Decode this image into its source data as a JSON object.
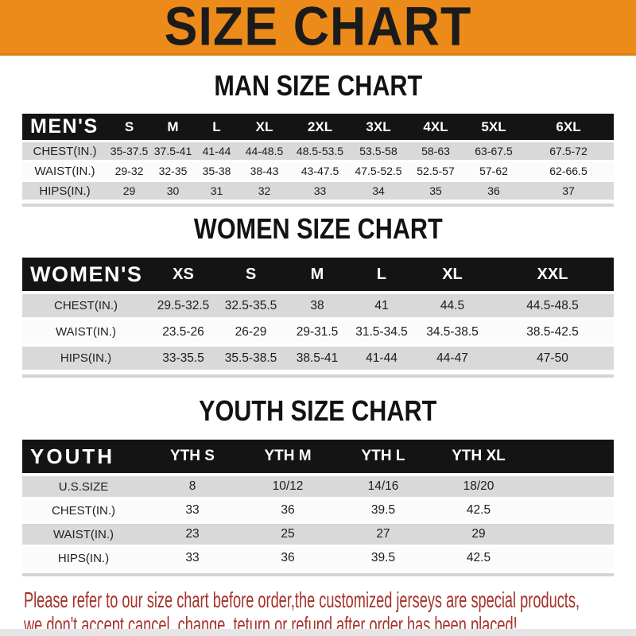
{
  "banner": {
    "title": "SIZE CHART"
  },
  "sections": [
    {
      "title": "MAN SIZE CHART",
      "group_label": "MEN'S",
      "columns": [
        "S",
        "M",
        "L",
        "XL",
        "2XL",
        "3XL",
        "4XL",
        "5XL",
        "6XL"
      ],
      "rows": [
        {
          "label": "CHEST(IN.)",
          "values": [
            "35-37.5",
            "37.5-41",
            "41-44",
            "44-48.5",
            "48.5-53.5",
            "53.5-58",
            "58-63",
            "63-67.5",
            "67.5-72"
          ]
        },
        {
          "label": "WAIST(IN.)",
          "values": [
            "29-32",
            "32-35",
            "35-38",
            "38-43",
            "43-47.5",
            "47.5-52.5",
            "52.5-57",
            "57-62",
            "62-66.5"
          ]
        },
        {
          "label": "HIPS(IN.)",
          "values": [
            "29",
            "30",
            "31",
            "32",
            "33",
            "34",
            "35",
            "36",
            "37"
          ]
        }
      ]
    },
    {
      "title": "WOMEN SIZE CHART",
      "group_label": "WOMEN'S",
      "columns": [
        "XS",
        "S",
        "M",
        "L",
        "XL",
        "XXL"
      ],
      "rows": [
        {
          "label": "CHEST(IN.)",
          "values": [
            "29.5-32.5",
            "32.5-35.5",
            "38",
            "41",
            "44.5",
            "44.5-48.5"
          ]
        },
        {
          "label": "WAIST(IN.)",
          "values": [
            "23.5-26",
            "26-29",
            "29-31.5",
            "31.5-34.5",
            "34.5-38.5",
            "38.5-42.5"
          ]
        },
        {
          "label": "HIPS(IN.)",
          "values": [
            "33-35.5",
            "35.5-38.5",
            "38.5-41",
            "41-44",
            "44-47",
            "47-50"
          ]
        }
      ]
    },
    {
      "title": "YOUTH SIZE CHART",
      "group_label": "YOUTH",
      "columns": [
        "YTH S",
        "YTH M",
        "YTH L",
        "YTH XL"
      ],
      "rows": [
        {
          "label": "U.S.SIZE",
          "values": [
            "8",
            "10/12",
            "14/16",
            "18/20"
          ]
        },
        {
          "label": "CHEST(IN.)",
          "values": [
            "33",
            "36",
            "39.5",
            "42.5"
          ]
        },
        {
          "label": "WAIST(IN.)",
          "values": [
            "23",
            "25",
            "27",
            "29"
          ]
        },
        {
          "label": "HIPS(IN.)",
          "values": [
            "33",
            "36",
            "39.5",
            "42.5"
          ]
        }
      ]
    }
  ],
  "footer": {
    "line1": "Please refer to our size chart before order,the customized jerseys are special products,",
    "line2": "we don't accept cancel, change, teturn or refund after order has been placed!"
  },
  "colors": {
    "banner_bg": "#EC8B1A",
    "bar_bg": "#141414",
    "row_alt_bg": "#D9D9D9",
    "row_bg": "#FBFBFB",
    "table_rule": "#D4D4D4",
    "footer_text": "#A5322B"
  }
}
